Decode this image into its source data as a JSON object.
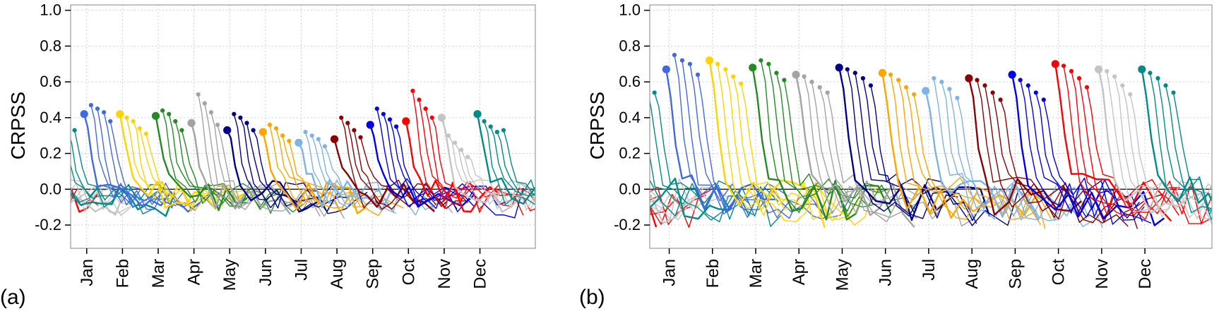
{
  "chart_data": {
    "type": "line",
    "title": "",
    "description": "Two-panel figure of CRPSS skill trajectories; for each initialization month a colored fan of forecast lines starts high (dot at initialization, large dot for first start) and decays toward zero with increasing lead time.",
    "months": [
      "Jan",
      "Feb",
      "Mar",
      "Apr",
      "May",
      "Jun",
      "Jul",
      "Aug",
      "Sep",
      "Oct",
      "Nov",
      "Dec"
    ],
    "month_colors": [
      "#4169E1",
      "#FFD300",
      "#228B22",
      "#A3A3A3",
      "#00008B",
      "#FFA500",
      "#7FB2E5",
      "#8B0000",
      "#0000EE",
      "#FF0000",
      "#C4C4C4",
      "#008B8B"
    ],
    "yticks": [
      -0.2,
      0.0,
      0.2,
      0.4,
      0.6,
      0.8,
      1.0
    ],
    "ylim": [
      -0.33,
      1.03
    ],
    "xlim": [
      -0.45,
      12.55
    ],
    "grid_color": "#cfcfcf",
    "box_color": "#9a9a9a",
    "zero_line_color": "#000000",
    "panels": [
      {
        "letter": "(a)",
        "ylabel": "CRPSS",
        "seed": 7,
        "tail_amp": 0.17,
        "tail_drift": -0.02,
        "peaks": [
          [
            0.42,
            0.47,
            0.45,
            0.43,
            0.38
          ],
          [
            0.42,
            0.4,
            0.38,
            0.34,
            0.31
          ],
          [
            0.41,
            0.44,
            0.42,
            0.38,
            0.33
          ],
          [
            0.37,
            0.53,
            0.48,
            0.43,
            0.36
          ],
          [
            0.33,
            0.42,
            0.4,
            0.37,
            0.33
          ],
          [
            0.32,
            0.36,
            0.34,
            0.3,
            0.27
          ],
          [
            0.26,
            0.32,
            0.3,
            0.28,
            0.24
          ],
          [
            0.28,
            0.4,
            0.37,
            0.33,
            0.29
          ],
          [
            0.36,
            0.45,
            0.42,
            0.39,
            0.35
          ],
          [
            0.38,
            0.55,
            0.5,
            0.45,
            0.4
          ],
          [
            0.4,
            0.3,
            0.26,
            0.22,
            0.18
          ],
          [
            0.42,
            0.38,
            0.35,
            0.32,
            0.33
          ]
        ]
      },
      {
        "letter": "(b)",
        "ylabel": "CRPSS",
        "seed": 91,
        "tail_amp": 0.24,
        "tail_drift": -0.03,
        "peaks": [
          [
            0.67,
            0.75,
            0.72,
            0.7,
            0.64
          ],
          [
            0.72,
            0.7,
            0.67,
            0.63,
            0.59
          ],
          [
            0.68,
            0.72,
            0.7,
            0.65,
            0.61
          ],
          [
            0.64,
            0.63,
            0.6,
            0.57,
            0.54
          ],
          [
            0.68,
            0.67,
            0.65,
            0.62,
            0.58
          ],
          [
            0.65,
            0.64,
            0.61,
            0.57,
            0.53
          ],
          [
            0.55,
            0.62,
            0.6,
            0.56,
            0.51
          ],
          [
            0.62,
            0.61,
            0.58,
            0.54,
            0.5
          ],
          [
            0.64,
            0.61,
            0.58,
            0.54,
            0.5
          ],
          [
            0.7,
            0.69,
            0.66,
            0.62,
            0.57
          ],
          [
            0.67,
            0.66,
            0.63,
            0.58,
            0.53
          ],
          [
            0.67,
            0.65,
            0.62,
            0.58,
            0.54
          ]
        ]
      }
    ]
  }
}
